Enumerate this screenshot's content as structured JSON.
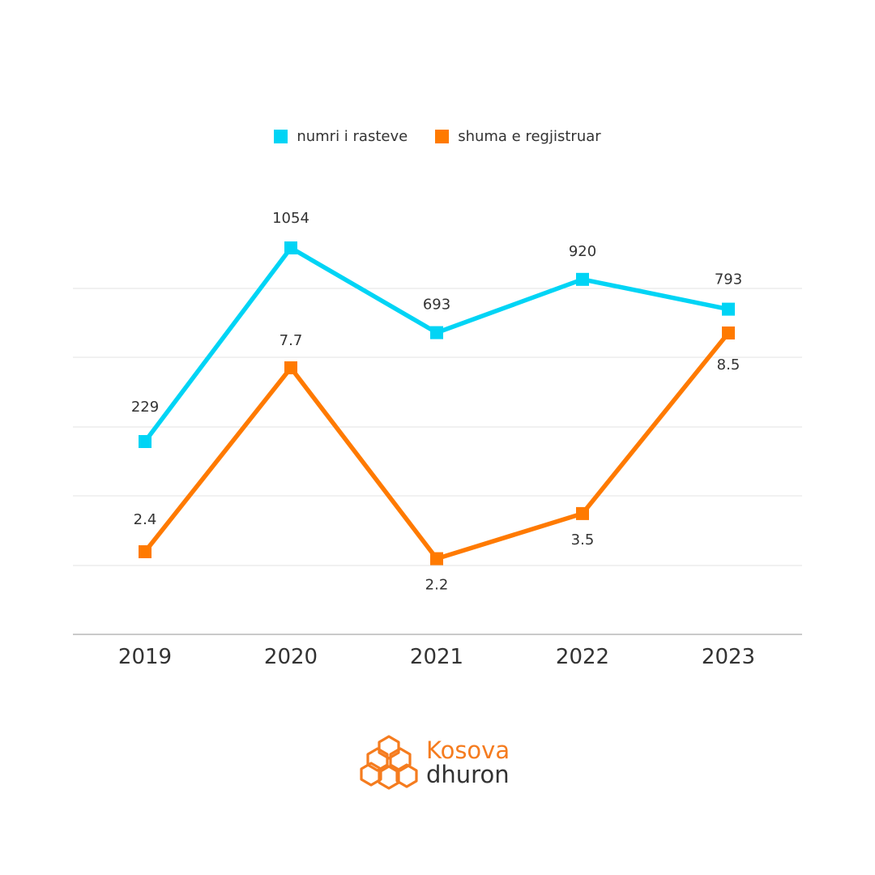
{
  "chart_data": {
    "type": "line",
    "categories": [
      "2019",
      "2020",
      "2021",
      "2022",
      "2023"
    ],
    "series": [
      {
        "name": "numri i rasteve",
        "color": "#00d4f5",
        "values": [
          229,
          1054,
          693,
          920,
          793
        ],
        "labels": [
          "229",
          "1054",
          "693",
          "920",
          "793"
        ]
      },
      {
        "name": "shuma e regjistruar",
        "color": "#ff7a00",
        "values": [
          2.4,
          7.7,
          2.2,
          3.5,
          8.5
        ],
        "labels": [
          "2.4",
          "7.7",
          "2.2",
          "3.5",
          "8.5"
        ]
      }
    ],
    "legend_position": "top-center",
    "grid": true
  },
  "logo": {
    "line1": "Kosova",
    "line2": "dhuron",
    "icon": "hexagon-cluster-icon",
    "color": "#f57c1f"
  }
}
